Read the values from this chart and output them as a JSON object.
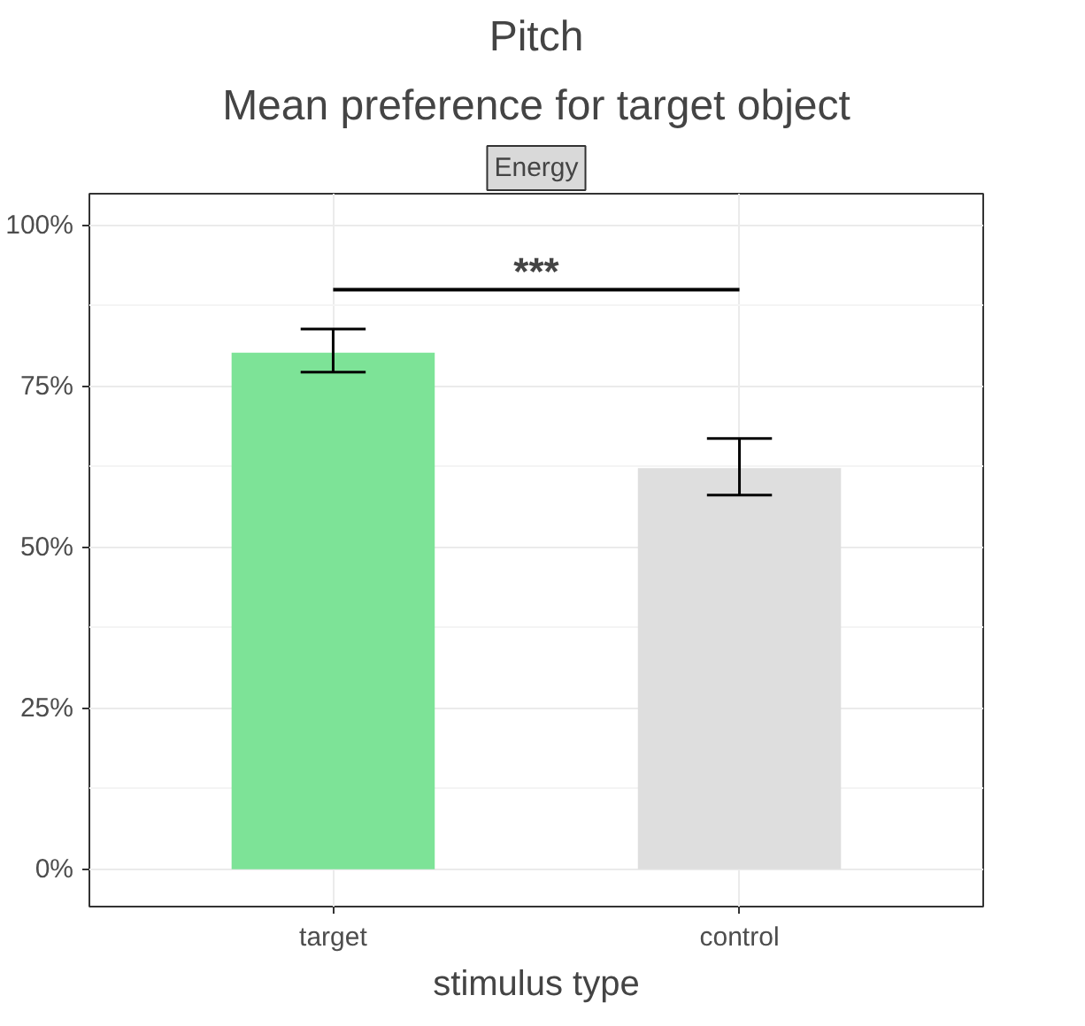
{
  "chart_data": {
    "type": "bar",
    "title": "Pitch",
    "subtitle": "Mean preference for target object",
    "xlabel": "stimulus type",
    "annotations": [
      "Energy",
      "***"
    ],
    "categories": [
      "target",
      "control"
    ],
    "values": [
      80.2,
      62.3
    ],
    "colors": [
      "#7de397",
      "#dedede"
    ],
    "errors": [
      [
        77.2,
        83.9
      ],
      [
        58.1,
        66.9
      ]
    ],
    "ylim": [
      -5.8,
      104.9
    ],
    "yticks": [
      {
        "value": 0,
        "label": "0%"
      },
      {
        "value": 25,
        "label": "25%"
      },
      {
        "value": 50,
        "label": "50%"
      },
      {
        "value": 75,
        "label": "75%"
      },
      {
        "value": 100,
        "label": "100%"
      }
    ],
    "grid": true
  }
}
